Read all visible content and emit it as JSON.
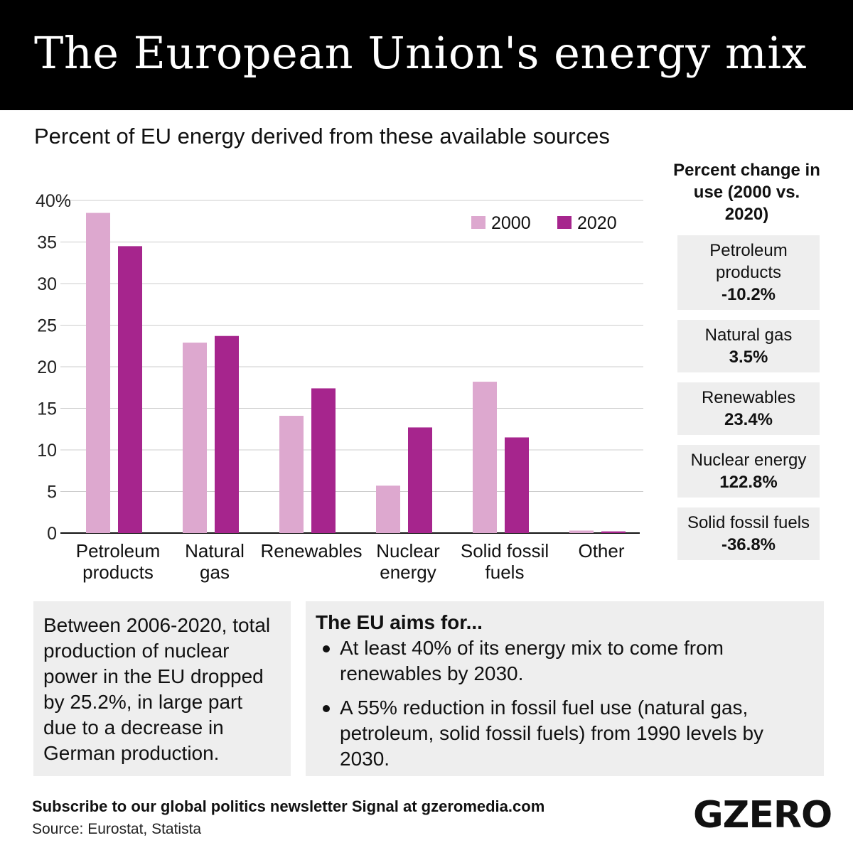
{
  "header": {
    "title": "The European Union's energy mix"
  },
  "chart_data": {
    "type": "bar",
    "title": "Percent of EU energy derived from these available sources",
    "categories": [
      [
        "Petroleum",
        "products"
      ],
      [
        "Natural",
        "gas"
      ],
      [
        "Renewables"
      ],
      [
        "Nuclear",
        "energy"
      ],
      [
        "Solid fossil",
        "fuels"
      ],
      [
        "Other"
      ]
    ],
    "series": [
      {
        "name": "2000",
        "color": "#dda8cf",
        "values": [
          38.5,
          22.9,
          14.1,
          5.7,
          18.2,
          0.3
        ]
      },
      {
        "name": "2020",
        "color": "#a6258d",
        "values": [
          34.5,
          23.7,
          17.4,
          12.7,
          11.5,
          0.2
        ]
      }
    ],
    "ylim": [
      0,
      40
    ],
    "yticks": [
      "0",
      "5",
      "10",
      "15",
      "20",
      "25",
      "30",
      "35",
      "40%"
    ],
    "grid": true,
    "legend": "top-right"
  },
  "side": {
    "title": "Percent change in use (2000 vs. 2020)",
    "items": [
      {
        "label": "Petroleum products",
        "value": "-10.2%"
      },
      {
        "label": "Natural gas",
        "value": "3.5%"
      },
      {
        "label": "Renewables",
        "value": "23.4%"
      },
      {
        "label": "Nuclear energy",
        "value": "122.8%"
      },
      {
        "label": "Solid fossil fuels",
        "value": "-36.8%"
      }
    ]
  },
  "note": "Between 2006-2020, total production of nuclear power in the EU dropped by 25.2%, in large part due to a decrease in German production.",
  "aims": {
    "title": "The EU aims for...",
    "items": [
      "At least 40% of its energy mix to come from renewables by 2030.",
      "A 55% reduction in fossil fuel use (natural gas, petroleum, solid fossil fuels) from 1990 levels by 2030."
    ]
  },
  "footer": {
    "subscribe": "Subscribe to our global politics newsletter Signal at gzeromedia.com",
    "source": "Source: Eurostat, Statista",
    "logo": "GZERO"
  }
}
